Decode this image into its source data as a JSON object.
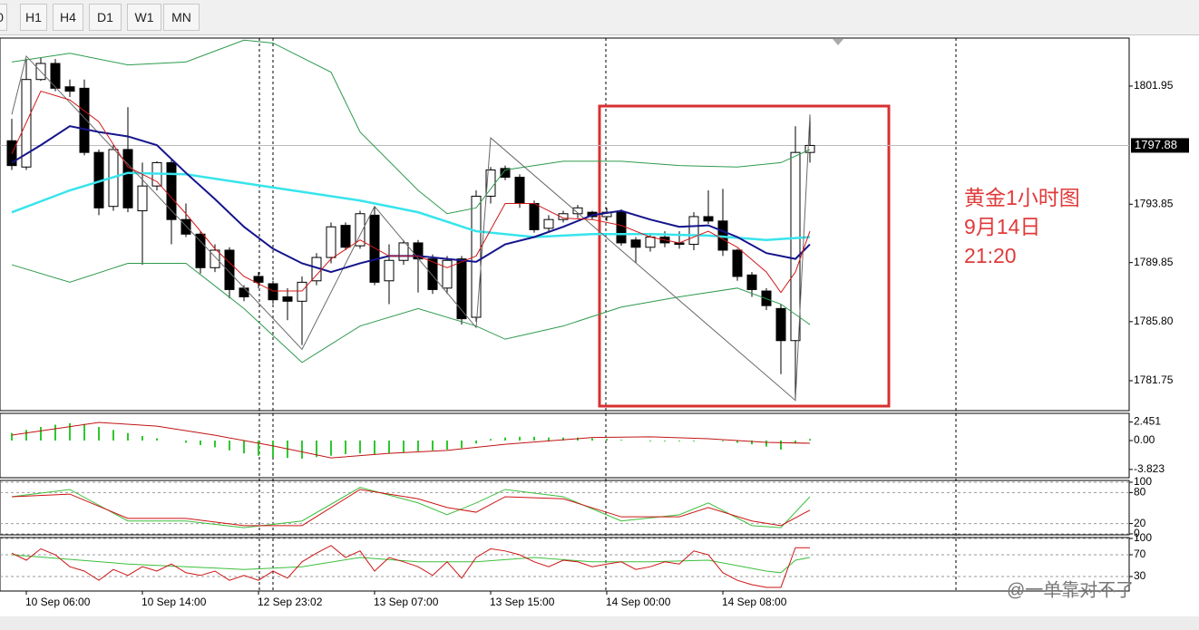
{
  "toolbar": {
    "buttons": [
      "0",
      "H1",
      "H4",
      "D1",
      "W1",
      "MN"
    ]
  },
  "watermark": "@一单靠对不了",
  "chart_data": [
    {
      "type": "candlestick",
      "categories": [
        null,
        "10 Sep 06:00",
        null,
        null,
        null,
        null,
        null,
        null,
        null,
        "10 Sep 14:00",
        null,
        null,
        null,
        null,
        null,
        null,
        null,
        "12 Sep 23:02",
        null,
        null,
        null,
        null,
        null,
        null,
        null,
        "13 Sep 07:00",
        null,
        null,
        null,
        null,
        null,
        null,
        null,
        "13 Sep 15:00",
        null,
        null,
        null,
        null,
        null,
        null,
        null,
        "14 Sep 00:00",
        null,
        null,
        null,
        null,
        null,
        null,
        null,
        "14 Sep 08:00",
        null,
        null,
        null,
        null,
        null,
        null
      ],
      "open": [
        1798.2,
        1796.4,
        1802.4,
        1803.5,
        1801.9,
        1801.8,
        1797.4,
        1793.7,
        1797.6,
        1793.4,
        1795.1,
        1796.7,
        1792.8,
        1791.8,
        1789.5,
        1790.7,
        1788.1,
        1788.9,
        1788.4,
        1787.5,
        1787.2,
        1788.6,
        1790.2,
        1792.4,
        1791.0,
        1793.1,
        1788.6,
        1790.0,
        1791.2,
        1790.1,
        1788.1,
        1790.1,
        1786.1,
        1794.4,
        1796.3,
        1795.7,
        1793.9,
        1792.2,
        1792.8,
        1793.2,
        1793.3,
        1793.0,
        1793.3,
        1791.4,
        1790.9,
        1791.6,
        1791.2,
        1791.1,
        1793.0,
        1792.7,
        1790.7,
        1789.0,
        1787.9,
        1786.7,
        1784.5,
        1797.4
      ],
      "high": [
        1799.7,
        1803.8,
        1803.9,
        1803.8,
        1802.4,
        1802.4,
        1797.6,
        1797.9,
        1800.5,
        1796.7,
        1796.8,
        1796.9,
        1793.9,
        1792.0,
        1791.1,
        1790.9,
        1788.3,
        1789.2,
        1788.6,
        1788.1,
        1788.9,
        1790.5,
        1792.6,
        1792.6,
        1793.4,
        1793.7,
        1791.1,
        1791.4,
        1791.4,
        1790.4,
        1790.3,
        1790.3,
        1794.8,
        1796.4,
        1796.5,
        1795.9,
        1794.1,
        1793.1,
        1793.4,
        1793.8,
        1793.4,
        1793.6,
        1793.5,
        1791.6,
        1791.8,
        1792.0,
        1792.0,
        1793.3,
        1794.8,
        1794.9,
        1790.8,
        1789.2,
        1788.1,
        1787.0,
        1799.2,
        1800.0
      ],
      "low": [
        1796.2,
        1796.2,
        1802.3,
        1801.6,
        1801.2,
        1797.2,
        1793.1,
        1793.4,
        1793.3,
        1789.7,
        1794.8,
        1791.1,
        1791.6,
        1789.1,
        1789.2,
        1787.4,
        1787.2,
        1788.1,
        1787.0,
        1785.9,
        1784.2,
        1788.3,
        1789.8,
        1790.7,
        1790.8,
        1788.3,
        1787.0,
        1789.7,
        1787.8,
        1787.7,
        1787.7,
        1785.6,
        1785.8,
        1793.9,
        1795.5,
        1793.6,
        1791.9,
        1792.0,
        1792.6,
        1792.9,
        1792.8,
        1792.7,
        1791.0,
        1789.8,
        1790.6,
        1790.9,
        1790.8,
        1790.7,
        1792.5,
        1790.3,
        1788.6,
        1787.5,
        1786.6,
        1782.2,
        1780.5,
        1796.7
      ],
      "close": [
        1796.5,
        1802.4,
        1803.5,
        1801.8,
        1801.6,
        1797.4,
        1793.6,
        1797.6,
        1793.6,
        1795.1,
        1796.7,
        1792.8,
        1791.8,
        1789.5,
        1790.7,
        1788.0,
        1787.5,
        1788.5,
        1787.3,
        1787.2,
        1788.5,
        1790.2,
        1792.3,
        1790.9,
        1793.2,
        1788.5,
        1790.0,
        1791.2,
        1790.1,
        1788.0,
        1790.0,
        1786.0,
        1794.4,
        1796.2,
        1795.7,
        1793.9,
        1792.1,
        1792.8,
        1793.2,
        1793.6,
        1793.0,
        1793.3,
        1791.2,
        1790.9,
        1791.6,
        1791.2,
        1791.1,
        1793.0,
        1792.7,
        1790.7,
        1788.9,
        1788.0,
        1786.9,
        1784.5,
        1797.4,
        1797.88
      ],
      "up_color": "#ffffff",
      "down_color": "#000000",
      "ylim": [
        1779.7,
        1805.24
      ],
      "yticks": [
        1801.95,
        1793.85,
        1789.85,
        {
          "value": 1785.8,
          "label": "1785.80"
        },
        1781.75
      ],
      "overlays": [
        {
          "color": "#2e9a4e",
          "x": [
            0,
            4,
            8,
            12,
            16,
            18,
            22,
            24,
            28,
            30,
            32,
            34,
            38,
            42,
            46,
            50,
            53,
            55
          ],
          "values": [
            1803.6,
            1804.2,
            1803.4,
            1803.6,
            1805.1,
            1804.9,
            1802.9,
            1798.8,
            1794.8,
            1793.2,
            1793.6,
            1796.2,
            1796.8,
            1796.8,
            1796.5,
            1796.4,
            1796.7,
            1797.6
          ]
        },
        {
          "color": "#2e9a4e",
          "x": [
            0,
            4,
            8,
            12,
            16,
            20,
            24,
            28,
            32,
            34,
            38,
            42,
            46,
            50,
            53,
            55
          ],
          "values": [
            1789.7,
            1788.5,
            1789.8,
            1789.8,
            1786.7,
            1783.0,
            1785.5,
            1786.7,
            1785.5,
            1784.6,
            1785.5,
            1786.8,
            1787.5,
            1788.1,
            1787.0,
            1785.6
          ]
        },
        {
          "color": "#38e4ec",
          "x": [
            0,
            4,
            8,
            12,
            16,
            20,
            24,
            28,
            32,
            36,
            40,
            44,
            48,
            52,
            55
          ],
          "values": [
            1793.3,
            1794.8,
            1796.0,
            1795.9,
            1795.3,
            1794.7,
            1794.1,
            1793.3,
            1792.0,
            1791.6,
            1791.8,
            1791.8,
            1791.7,
            1791.4,
            1791.6
          ]
        },
        {
          "color": "#6a6a6a",
          "x": [
            0,
            1,
            20,
            25,
            32,
            33,
            54,
            55
          ],
          "values": [
            1800.0,
            1804.0,
            1783.9,
            1793.7,
            1785.4,
            1798.4,
            1780.4,
            1800.0
          ]
        },
        {
          "color": "#14148c",
          "x": [
            0,
            2,
            4,
            6,
            8,
            10,
            12,
            14,
            16,
            18,
            20,
            22,
            24,
            26,
            28,
            30,
            32,
            34,
            36,
            38,
            40,
            42,
            44,
            46,
            48,
            50,
            52,
            54,
            55
          ],
          "values": [
            1796.7,
            1797.9,
            1799.2,
            1798.8,
            1798.5,
            1797.9,
            1796.0,
            1794.2,
            1792.3,
            1790.8,
            1789.8,
            1789.2,
            1789.8,
            1790.3,
            1790.3,
            1790.1,
            1789.9,
            1791.1,
            1791.6,
            1792.3,
            1793.1,
            1793.4,
            1792.8,
            1792.3,
            1792.4,
            1791.6,
            1790.5,
            1790.1,
            1791.1
          ]
        },
        {
          "color": "#d01818",
          "x": [
            0,
            2,
            4,
            6,
            8,
            10,
            12,
            14,
            16,
            18,
            20,
            22,
            24,
            26,
            28,
            30,
            32,
            34,
            36,
            38,
            40,
            42,
            44,
            46,
            48,
            50,
            52,
            53,
            54,
            55
          ],
          "values": [
            1797.3,
            1801.6,
            1801.0,
            1799.5,
            1796.4,
            1795.4,
            1793.2,
            1790.8,
            1788.9,
            1787.9,
            1787.9,
            1790.1,
            1791.4,
            1790.3,
            1790.3,
            1789.5,
            1790.3,
            1793.9,
            1793.9,
            1792.9,
            1792.8,
            1792.4,
            1791.6,
            1791.2,
            1792.0,
            1790.9,
            1789.2,
            1787.8,
            1789.2,
            1792.0
          ]
        }
      ],
      "annotations": [
        "黄金1小时图",
        "9月14日",
        "21:20"
      ],
      "annotation_color": "#e03a3a"
    },
    {
      "type": "macd",
      "histogram": [
        1.0,
        1.4,
        1.8,
        2.1,
        2.3,
        2.2,
        1.8,
        1.4,
        1.0,
        0.6,
        0.3,
        0.0,
        -0.3,
        -0.6,
        -0.9,
        -1.3,
        -1.7,
        -2.0,
        -2.2,
        -2.3,
        -2.4,
        -2.2,
        -2.0,
        -1.8,
        -1.7,
        -1.8,
        -1.7,
        -1.6,
        -1.4,
        -1.3,
        -1.2,
        -1.0,
        -0.4,
        0.2,
        0.4,
        0.5,
        0.5,
        0.4,
        0.4,
        0.4,
        0.3,
        0.2,
        0.1,
        0.0,
        -0.1,
        -0.1,
        -0.1,
        -0.1,
        0.0,
        -0.1,
        -0.3,
        -0.5,
        -0.8,
        -1.2,
        -0.4,
        0.2
      ],
      "histogram_color": "#2ec82e",
      "ylim": [
        -4.92,
        3.6
      ],
      "yticks": [
        2.451,
        {
          "value": 0,
          "label": "0.00"
        },
        -3.823
      ],
      "overlays": [
        {
          "color": "#c01414",
          "x": [
            0,
            6,
            10,
            14,
            18,
            22,
            26,
            30,
            34,
            40,
            44,
            48,
            52,
            55
          ],
          "values": [
            0.72,
            2.4,
            1.9,
            0.7,
            -0.7,
            -2.3,
            -1.7,
            -1.3,
            -0.5,
            0.4,
            0.5,
            0.24,
            -0.24,
            -0.36
          ]
        }
      ]
    },
    {
      "type": "line",
      "ylim": [
        -1.8,
        103.5
      ],
      "yticks": [
        100,
        80,
        20,
        0
      ],
      "grid": true,
      "overlays": [
        {
          "color": "#3cbf3c",
          "x": [
            0,
            4,
            8,
            12,
            16,
            20,
            24,
            28,
            30,
            32,
            34,
            38,
            42,
            46,
            48,
            51,
            53,
            55
          ],
          "values": [
            72,
            86,
            25,
            25,
            12,
            25,
            90,
            60,
            37,
            60,
            86,
            72,
            25,
            37,
            60,
            16,
            12,
            72
          ]
        },
        {
          "color": "#cc1414",
          "x": [
            0,
            4,
            8,
            12,
            16,
            20,
            24,
            28,
            30,
            32,
            34,
            38,
            42,
            46,
            48,
            51,
            53,
            55
          ],
          "values": [
            72,
            77,
            30,
            30,
            16,
            16,
            86,
            68,
            51,
            42,
            72,
            68,
            33,
            33,
            51,
            25,
            16,
            46
          ]
        }
      ]
    },
    {
      "type": "line",
      "ylim": [
        3.3,
        101.7
      ],
      "yticks": [
        100,
        70,
        30
      ],
      "grid": true,
      "overlays": [
        {
          "color": "#3cbf3c",
          "x": [
            0,
            8,
            16,
            20,
            24,
            28,
            32,
            36,
            40,
            44,
            48,
            52,
            53,
            54,
            55
          ],
          "values": [
            70,
            53,
            43,
            48,
            65,
            57,
            57,
            65,
            57,
            57,
            60,
            40,
            37,
            60,
            65
          ]
        },
        {
          "color": "#cc1414",
          "x": [
            0,
            1,
            2,
            3,
            4,
            5,
            6,
            7,
            8,
            9,
            10,
            11,
            12,
            13,
            14,
            15,
            16,
            17,
            18,
            19,
            20,
            21,
            22,
            23,
            24,
            25,
            26,
            27,
            28,
            29,
            30,
            31,
            32,
            33,
            34,
            35,
            36,
            37,
            38,
            39,
            40,
            41,
            42,
            43,
            44,
            45,
            46,
            47,
            48,
            49,
            50,
            51,
            52,
            53,
            54,
            55
          ],
          "values": [
            73,
            60,
            81,
            70,
            48,
            40,
            23,
            43,
            32,
            48,
            40,
            53,
            37,
            32,
            40,
            23,
            32,
            23,
            40,
            27,
            57,
            73,
            87,
            65,
            77,
            40,
            65,
            57,
            48,
            32,
            57,
            27,
            65,
            81,
            77,
            70,
            57,
            48,
            60,
            57,
            48,
            53,
            57,
            43,
            48,
            57,
            53,
            77,
            70,
            37,
            23,
            15,
            10,
            10,
            83,
            83
          ]
        }
      ]
    }
  ]
}
